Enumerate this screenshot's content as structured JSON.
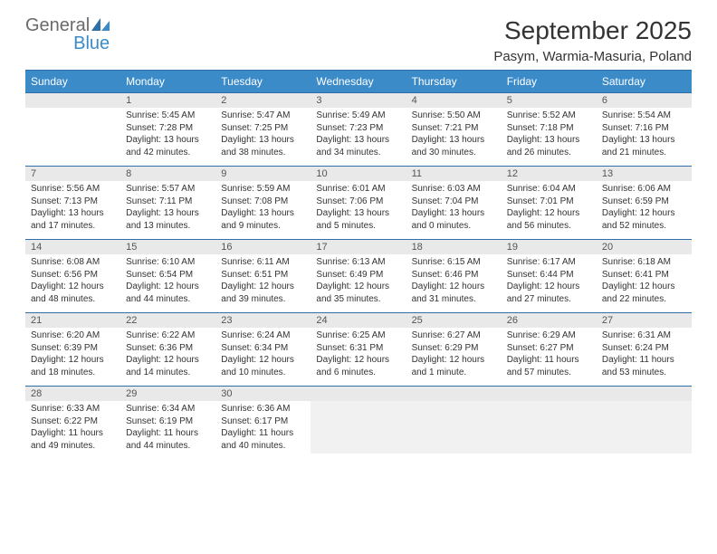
{
  "logo": {
    "word1": "General",
    "word2": "Blue"
  },
  "title": "September 2025",
  "location": "Pasym, Warmia-Masuria, Poland",
  "colors": {
    "header_bg": "#3b8bc9",
    "header_text": "#ffffff",
    "divider": "#2f6fa8",
    "daynum_bg": "#e9e9e9",
    "body_text": "#333333",
    "logo_gray": "#6a6a6a",
    "logo_blue": "#3b8bc9",
    "lastrow_fill": "#f1f1f1"
  },
  "layout": {
    "columns": 7,
    "rows": 5,
    "title_fontsize": 28,
    "subtitle_fontsize": 15,
    "header_fontsize": 12,
    "cell_fontsize": 10
  },
  "weekdays": [
    "Sunday",
    "Monday",
    "Tuesday",
    "Wednesday",
    "Thursday",
    "Friday",
    "Saturday"
  ],
  "weeks": [
    [
      null,
      {
        "day": "1",
        "sunrise": "Sunrise: 5:45 AM",
        "sunset": "Sunset: 7:28 PM",
        "daylight": "Daylight: 13 hours and 42 minutes."
      },
      {
        "day": "2",
        "sunrise": "Sunrise: 5:47 AM",
        "sunset": "Sunset: 7:25 PM",
        "daylight": "Daylight: 13 hours and 38 minutes."
      },
      {
        "day": "3",
        "sunrise": "Sunrise: 5:49 AM",
        "sunset": "Sunset: 7:23 PM",
        "daylight": "Daylight: 13 hours and 34 minutes."
      },
      {
        "day": "4",
        "sunrise": "Sunrise: 5:50 AM",
        "sunset": "Sunset: 7:21 PM",
        "daylight": "Daylight: 13 hours and 30 minutes."
      },
      {
        "day": "5",
        "sunrise": "Sunrise: 5:52 AM",
        "sunset": "Sunset: 7:18 PM",
        "daylight": "Daylight: 13 hours and 26 minutes."
      },
      {
        "day": "6",
        "sunrise": "Sunrise: 5:54 AM",
        "sunset": "Sunset: 7:16 PM",
        "daylight": "Daylight: 13 hours and 21 minutes."
      }
    ],
    [
      {
        "day": "7",
        "sunrise": "Sunrise: 5:56 AM",
        "sunset": "Sunset: 7:13 PM",
        "daylight": "Daylight: 13 hours and 17 minutes."
      },
      {
        "day": "8",
        "sunrise": "Sunrise: 5:57 AM",
        "sunset": "Sunset: 7:11 PM",
        "daylight": "Daylight: 13 hours and 13 minutes."
      },
      {
        "day": "9",
        "sunrise": "Sunrise: 5:59 AM",
        "sunset": "Sunset: 7:08 PM",
        "daylight": "Daylight: 13 hours and 9 minutes."
      },
      {
        "day": "10",
        "sunrise": "Sunrise: 6:01 AM",
        "sunset": "Sunset: 7:06 PM",
        "daylight": "Daylight: 13 hours and 5 minutes."
      },
      {
        "day": "11",
        "sunrise": "Sunrise: 6:03 AM",
        "sunset": "Sunset: 7:04 PM",
        "daylight": "Daylight: 13 hours and 0 minutes."
      },
      {
        "day": "12",
        "sunrise": "Sunrise: 6:04 AM",
        "sunset": "Sunset: 7:01 PM",
        "daylight": "Daylight: 12 hours and 56 minutes."
      },
      {
        "day": "13",
        "sunrise": "Sunrise: 6:06 AM",
        "sunset": "Sunset: 6:59 PM",
        "daylight": "Daylight: 12 hours and 52 minutes."
      }
    ],
    [
      {
        "day": "14",
        "sunrise": "Sunrise: 6:08 AM",
        "sunset": "Sunset: 6:56 PM",
        "daylight": "Daylight: 12 hours and 48 minutes."
      },
      {
        "day": "15",
        "sunrise": "Sunrise: 6:10 AM",
        "sunset": "Sunset: 6:54 PM",
        "daylight": "Daylight: 12 hours and 44 minutes."
      },
      {
        "day": "16",
        "sunrise": "Sunrise: 6:11 AM",
        "sunset": "Sunset: 6:51 PM",
        "daylight": "Daylight: 12 hours and 39 minutes."
      },
      {
        "day": "17",
        "sunrise": "Sunrise: 6:13 AM",
        "sunset": "Sunset: 6:49 PM",
        "daylight": "Daylight: 12 hours and 35 minutes."
      },
      {
        "day": "18",
        "sunrise": "Sunrise: 6:15 AM",
        "sunset": "Sunset: 6:46 PM",
        "daylight": "Daylight: 12 hours and 31 minutes."
      },
      {
        "day": "19",
        "sunrise": "Sunrise: 6:17 AM",
        "sunset": "Sunset: 6:44 PM",
        "daylight": "Daylight: 12 hours and 27 minutes."
      },
      {
        "day": "20",
        "sunrise": "Sunrise: 6:18 AM",
        "sunset": "Sunset: 6:41 PM",
        "daylight": "Daylight: 12 hours and 22 minutes."
      }
    ],
    [
      {
        "day": "21",
        "sunrise": "Sunrise: 6:20 AM",
        "sunset": "Sunset: 6:39 PM",
        "daylight": "Daylight: 12 hours and 18 minutes."
      },
      {
        "day": "22",
        "sunrise": "Sunrise: 6:22 AM",
        "sunset": "Sunset: 6:36 PM",
        "daylight": "Daylight: 12 hours and 14 minutes."
      },
      {
        "day": "23",
        "sunrise": "Sunrise: 6:24 AM",
        "sunset": "Sunset: 6:34 PM",
        "daylight": "Daylight: 12 hours and 10 minutes."
      },
      {
        "day": "24",
        "sunrise": "Sunrise: 6:25 AM",
        "sunset": "Sunset: 6:31 PM",
        "daylight": "Daylight: 12 hours and 6 minutes."
      },
      {
        "day": "25",
        "sunrise": "Sunrise: 6:27 AM",
        "sunset": "Sunset: 6:29 PM",
        "daylight": "Daylight: 12 hours and 1 minute."
      },
      {
        "day": "26",
        "sunrise": "Sunrise: 6:29 AM",
        "sunset": "Sunset: 6:27 PM",
        "daylight": "Daylight: 11 hours and 57 minutes."
      },
      {
        "day": "27",
        "sunrise": "Sunrise: 6:31 AM",
        "sunset": "Sunset: 6:24 PM",
        "daylight": "Daylight: 11 hours and 53 minutes."
      }
    ],
    [
      {
        "day": "28",
        "sunrise": "Sunrise: 6:33 AM",
        "sunset": "Sunset: 6:22 PM",
        "daylight": "Daylight: 11 hours and 49 minutes."
      },
      {
        "day": "29",
        "sunrise": "Sunrise: 6:34 AM",
        "sunset": "Sunset: 6:19 PM",
        "daylight": "Daylight: 11 hours and 44 minutes."
      },
      {
        "day": "30",
        "sunrise": "Sunrise: 6:36 AM",
        "sunset": "Sunset: 6:17 PM",
        "daylight": "Daylight: 11 hours and 40 minutes."
      },
      null,
      null,
      null,
      null
    ]
  ]
}
